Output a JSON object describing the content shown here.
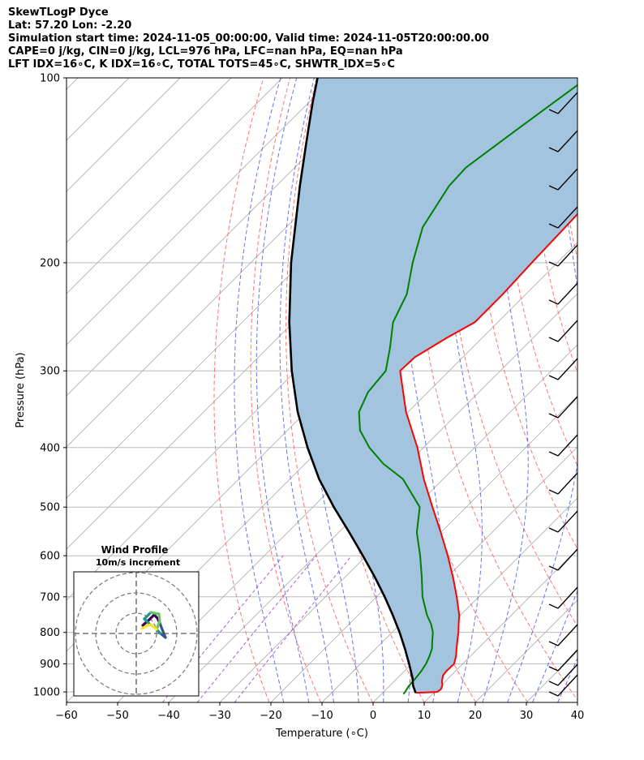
{
  "header": {
    "line1": "SkewTLogP Dyce",
    "line2": "Lat: 57.20   Lon: -2.20",
    "line3": "Simulation start time: 2024-11-05_00:00:00, Valid time: 2024-11-05T20:00:00.00",
    "line4": "CAPE=0 j/kg, CIN=0 j/kg, LCL=976 hPa, LFC=nan hPa, EQ=nan hPa",
    "line5": "LFT IDX=16∘C, K IDX=16∘C, TOTAL TOTS=45∘C, SHWTR_IDX=5∘C"
  },
  "colors": {
    "temperature": "#ff0000",
    "dewpoint": "#008000",
    "parcel": "#000000",
    "cape_fill": "#a2c4df",
    "dry_adiabat": "#ff6666",
    "moist_adiabat": "#5566ee",
    "mixing_ratio": "#9933cc",
    "isotherm": "#b0b0b0"
  },
  "chart_data": [
    {
      "type": "line",
      "xlabel": "Temperature (∘C)",
      "ylabel": "Pressure (hPa)",
      "xlim": [
        -60,
        40
      ],
      "ylim": [
        1040,
        100
      ],
      "yscale": "log",
      "skew": true,
      "grid": true,
      "x_ticks": [
        "−60",
        "−50",
        "−40",
        "−30",
        "−20",
        "−10",
        "0",
        "10",
        "20",
        "30",
        "40"
      ],
      "y_ticks": [
        "100",
        "200",
        "300",
        "400",
        "500",
        "600",
        "700",
        "800",
        "900",
        "1000"
      ],
      "temperature_profile": {
        "pressure": [
          1003,
          1000,
          990,
          975,
          960,
          940,
          925,
          900,
          875,
          850,
          825,
          800,
          775,
          750,
          700,
          650,
          600,
          550,
          500,
          450,
          400,
          350,
          300,
          285,
          265,
          250,
          225,
          200,
          175,
          150,
          125,
          110,
          100
        ],
        "temp": [
          6.5,
          10.5,
          10.7,
          10.2,
          9.3,
          8.4,
          8.2,
          8.3,
          7.2,
          5.8,
          4.4,
          3.0,
          1.4,
          -0.2,
          -4.3,
          -8.9,
          -14.1,
          -20.0,
          -26.6,
          -33.8,
          -41.2,
          -50.4,
          -59.6,
          -59.4,
          -56.9,
          -54.5,
          -54.5,
          -55.0,
          -55.4,
          -55.9,
          -57.1,
          -59.1,
          -60.4
        ]
      },
      "dewpoint_profile": {
        "pressure": [
          1008,
          1000,
          980,
          950,
          925,
          900,
          875,
          850,
          825,
          800,
          775,
          750,
          700,
          650,
          600,
          550,
          500,
          450,
          425,
          400,
          375,
          350,
          325,
          300,
          275,
          250,
          225,
          200,
          175,
          150,
          140,
          125,
          110,
          100
        ],
        "dewpt": [
          4.3,
          4.2,
          3.8,
          3.6,
          3.3,
          2.8,
          2.0,
          1.0,
          -0.5,
          -2.0,
          -4.0,
          -6.5,
          -11.0,
          -15.0,
          -19.5,
          -24.7,
          -29.1,
          -37.9,
          -44.7,
          -50.6,
          -55.8,
          -59.6,
          -61.7,
          -62.4,
          -66.1,
          -70.5,
          -73.3,
          -78.3,
          -83.3,
          -86.2,
          -86.5,
          -84.5,
          -82.1,
          -80.3
        ]
      },
      "parcel_profile": {
        "pressure": [
          1003,
          1000,
          976,
          950,
          900,
          850,
          800,
          750,
          700,
          650,
          600,
          550,
          500,
          450,
          400,
          350,
          300,
          250,
          200,
          150,
          125,
          110,
          100
        ],
        "temp": [
          6.5,
          6.2,
          4.5,
          3.0,
          -0.5,
          -4.3,
          -8.5,
          -13.2,
          -18.4,
          -24.2,
          -30.7,
          -37.9,
          -45.9,
          -54.3,
          -62.7,
          -71.6,
          -80.8,
          -90.8,
          -102.1,
          -115.4,
          -123.5,
          -129.1,
          -133.1
        ]
      }
    },
    {
      "type": "line",
      "title": "Wind Profile",
      "subtitle": "10m/s increment",
      "colormap": [
        "#440154",
        "#3b528b",
        "#21918c",
        "#5ec962",
        "#fde725"
      ]
    }
  ]
}
